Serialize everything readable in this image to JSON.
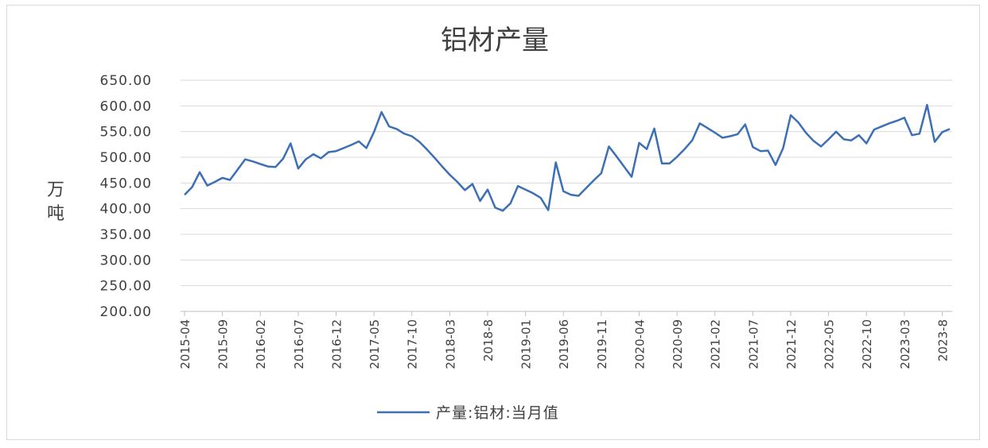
{
  "chart_data": {
    "type": "line",
    "title": "铝材产量",
    "ylabel": "万吨",
    "ylim": [
      200,
      650
    ],
    "yticks": [
      "200.00",
      "250.00",
      "300.00",
      "350.00",
      "400.00",
      "450.00",
      "500.00",
      "550.00",
      "600.00",
      "650.00"
    ],
    "xticks": [
      "2015-04",
      "2015-09",
      "2016-02",
      "2016-07",
      "2016-12",
      "2017-05",
      "2017-10",
      "2018-03",
      "2018-8",
      "2019-01",
      "2019-06",
      "2019-11",
      "2020-04",
      "2020-09",
      "2021-02",
      "2021-07",
      "2021-12",
      "2022-05",
      "2022-10",
      "2023-03",
      "2023-8"
    ],
    "grid": true,
    "legend": "bottom",
    "line_color": "#3d6fb5",
    "series": [
      {
        "name": "产量:铝材:当月值",
        "x_start": "2015-04",
        "x_end": "2023-09",
        "values": [
          427,
          442,
          471,
          445,
          452,
          460,
          456,
          476,
          496,
          492,
          487,
          482,
          481,
          497,
          527,
          478,
          496,
          506,
          498,
          510,
          512,
          518,
          524,
          531,
          518,
          549,
          588,
          560,
          555,
          546,
          541,
          530,
          515,
          499,
          482,
          466,
          452,
          436,
          448,
          415,
          437,
          402,
          396,
          410,
          444,
          437,
          430,
          421,
          397,
          490,
          434,
          427,
          425,
          440,
          455,
          469,
          521,
          502,
          482,
          462,
          528,
          516,
          556,
          488,
          488,
          501,
          516,
          533,
          566,
          557,
          548,
          538,
          541,
          545,
          564,
          520,
          512,
          513,
          485,
          518,
          582,
          568,
          548,
          532,
          521,
          535,
          550,
          535,
          533,
          543,
          527,
          554,
          560,
          566,
          571,
          577,
          543,
          546,
          602,
          530,
          549,
          555
        ]
      }
    ]
  }
}
